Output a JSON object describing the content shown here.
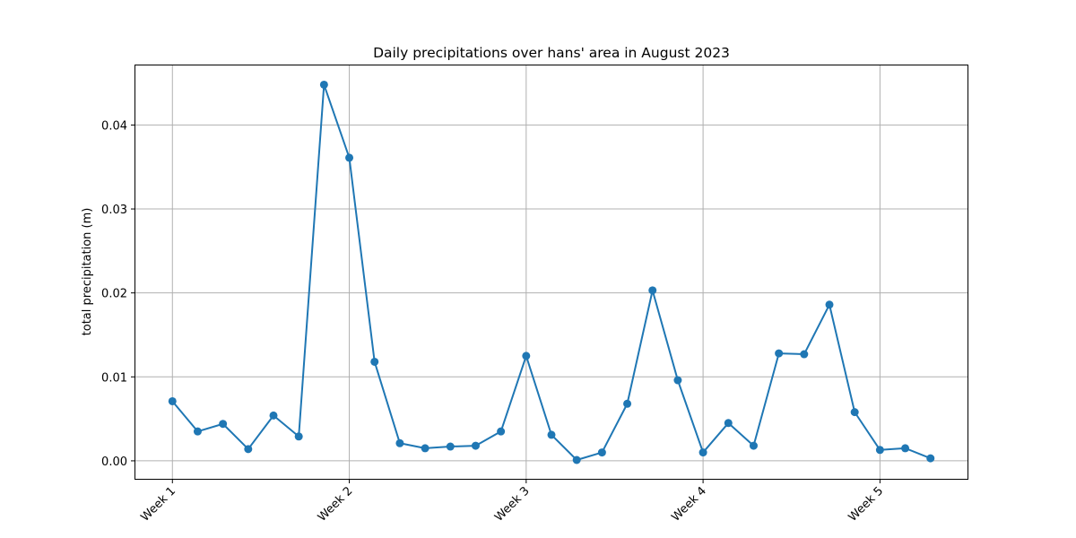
{
  "chart_data": {
    "type": "line",
    "title": "Daily precipitations over hans' area in August 2023",
    "xlabel": "",
    "ylabel": "total precipitation (m)",
    "xlim": [
      -1.5,
      31.5
    ],
    "ylim": [
      -0.00225,
      0.0472
    ],
    "x_ticks": [
      {
        "x": 0,
        "label": "Week 1"
      },
      {
        "x": 7,
        "label": "Week 2"
      },
      {
        "x": 14,
        "label": "Week 3"
      },
      {
        "x": 21,
        "label": "Week 4"
      },
      {
        "x": 28,
        "label": "Week 5"
      }
    ],
    "y_ticks": [
      {
        "y": 0.0,
        "label": "0.00"
      },
      {
        "y": 0.01,
        "label": "0.01"
      },
      {
        "y": 0.02,
        "label": "0.02"
      },
      {
        "y": 0.03,
        "label": "0.03"
      },
      {
        "y": 0.04,
        "label": "0.04"
      }
    ],
    "grid": true,
    "series": [
      {
        "color": "#1f77b4",
        "marker": "circle",
        "x": [
          0,
          1,
          2,
          3,
          4,
          5,
          6,
          7,
          8,
          9,
          10,
          11,
          12,
          13,
          14,
          15,
          16,
          17,
          18,
          19,
          20,
          21,
          22,
          23,
          24,
          25,
          26,
          27,
          28,
          29,
          30
        ],
        "values": [
          0.0071,
          0.0035,
          0.0044,
          0.0014,
          0.0054,
          0.0029,
          0.0448,
          0.0361,
          0.0118,
          0.0021,
          0.0015,
          0.0017,
          0.0018,
          0.0035,
          0.0125,
          0.0031,
          0.0001,
          0.001,
          0.0068,
          0.0203,
          0.0096,
          0.001,
          0.0045,
          0.0018,
          0.0128,
          0.0127,
          0.0186,
          0.0058,
          0.0013,
          0.0015,
          0.0003
        ]
      }
    ]
  }
}
